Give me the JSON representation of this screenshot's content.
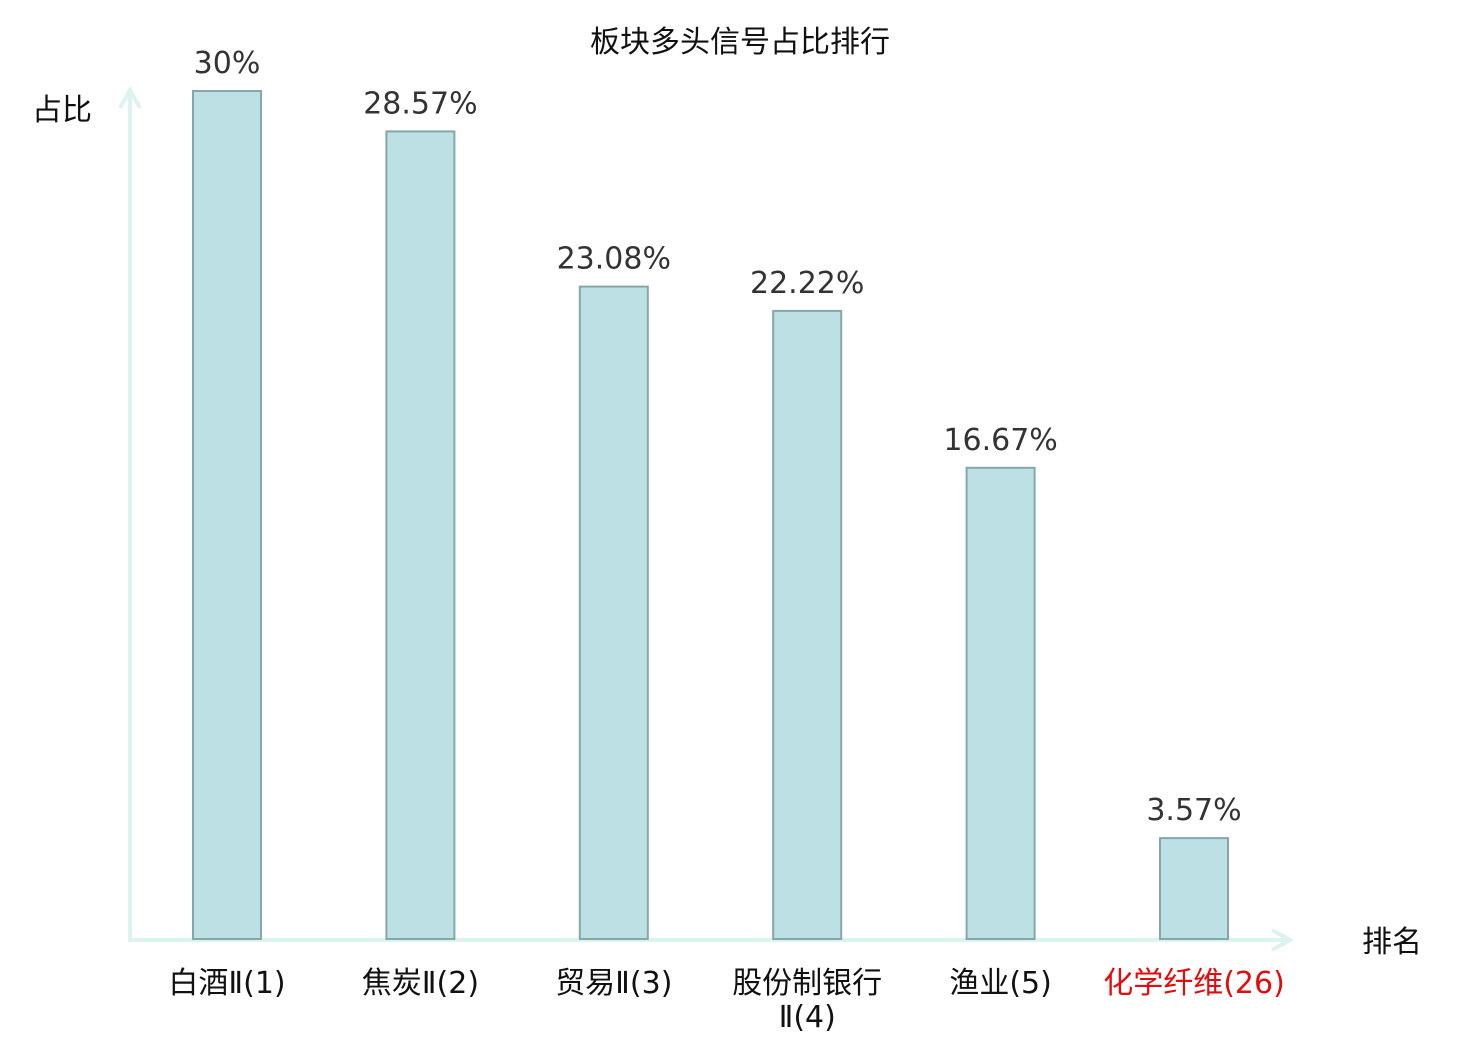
{
  "chart_data": {
    "type": "bar",
    "title": "板块多头信号占比排行",
    "xlabel": "排名",
    "ylabel": "占比",
    "categories": [
      {
        "name": "白酒Ⅱ",
        "rank": "(1)",
        "highlight": false
      },
      {
        "name": "焦炭Ⅱ",
        "rank": "(2)",
        "highlight": false
      },
      {
        "name": "贸易Ⅱ",
        "rank": "(3)",
        "highlight": false
      },
      {
        "name": "股份制银行Ⅱ",
        "rank": "(4)",
        "highlight": false
      },
      {
        "name": "渔业",
        "rank": "(5)",
        "highlight": false
      },
      {
        "name": "化学纤维",
        "rank": "(26)",
        "highlight": true
      }
    ],
    "values": [
      30,
      28.57,
      23.08,
      22.22,
      16.67,
      3.57
    ],
    "value_labels": [
      "30%",
      "28.57%",
      "23.08%",
      "22.22%",
      "16.67%",
      "3.57%"
    ],
    "ylim": [
      0,
      30
    ],
    "grid": false,
    "colors": {
      "bar_fill": "#bce0e3",
      "bar_stroke": "#86a7a9",
      "axis": "#ddf3f0",
      "highlight_label": "#e30b0b",
      "value_label": "#333333",
      "text": "#111111"
    }
  }
}
